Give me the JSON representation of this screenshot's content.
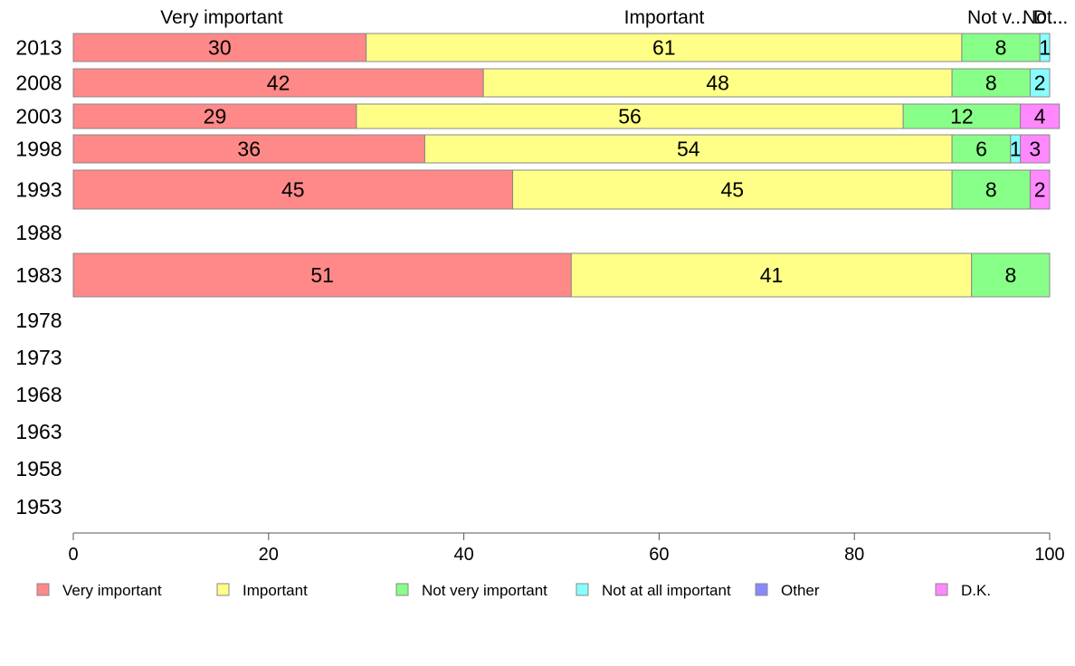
{
  "chart_data": {
    "type": "bar",
    "orientation": "horizontal",
    "stacked": true,
    "categories": [
      "2013",
      "2008",
      "2003",
      "1998",
      "1993",
      "1988",
      "1983",
      "1978",
      "1973",
      "1968",
      "1963",
      "1958",
      "1953"
    ],
    "series": [
      {
        "name": "Very important",
        "color": "#ff8888",
        "values": [
          30,
          42,
          29,
          36,
          45,
          null,
          51,
          null,
          null,
          null,
          null,
          null,
          null
        ]
      },
      {
        "name": "Important",
        "color": "#ffff88",
        "values": [
          61,
          48,
          56,
          54,
          45,
          null,
          41,
          null,
          null,
          null,
          null,
          null,
          null
        ]
      },
      {
        "name": "Not very important",
        "color": "#88ff88",
        "values": [
          8,
          8,
          12,
          6,
          8,
          null,
          8,
          null,
          null,
          null,
          null,
          null,
          null
        ]
      },
      {
        "name": "Not at all important",
        "color": "#88ffff",
        "values": [
          1,
          2,
          null,
          1,
          null,
          null,
          null,
          null,
          null,
          null,
          null,
          null,
          null
        ]
      },
      {
        "name": "Other",
        "color": "#8888ff",
        "values": [
          null,
          null,
          null,
          null,
          null,
          null,
          null,
          null,
          null,
          null,
          null,
          null,
          null
        ]
      },
      {
        "name": "D.K.",
        "color": "#ff88ff",
        "values": [
          null,
          null,
          4,
          3,
          2,
          null,
          null,
          null,
          null,
          null,
          null,
          null,
          null
        ]
      }
    ],
    "top_labels": [
      "Very important",
      "Important",
      "Not v...",
      "Not...",
      "D..."
    ],
    "x_ticks": [
      0,
      20,
      40,
      60,
      80,
      100
    ],
    "xlim": [
      0,
      100
    ],
    "legend_position": "bottom",
    "grid": false
  }
}
